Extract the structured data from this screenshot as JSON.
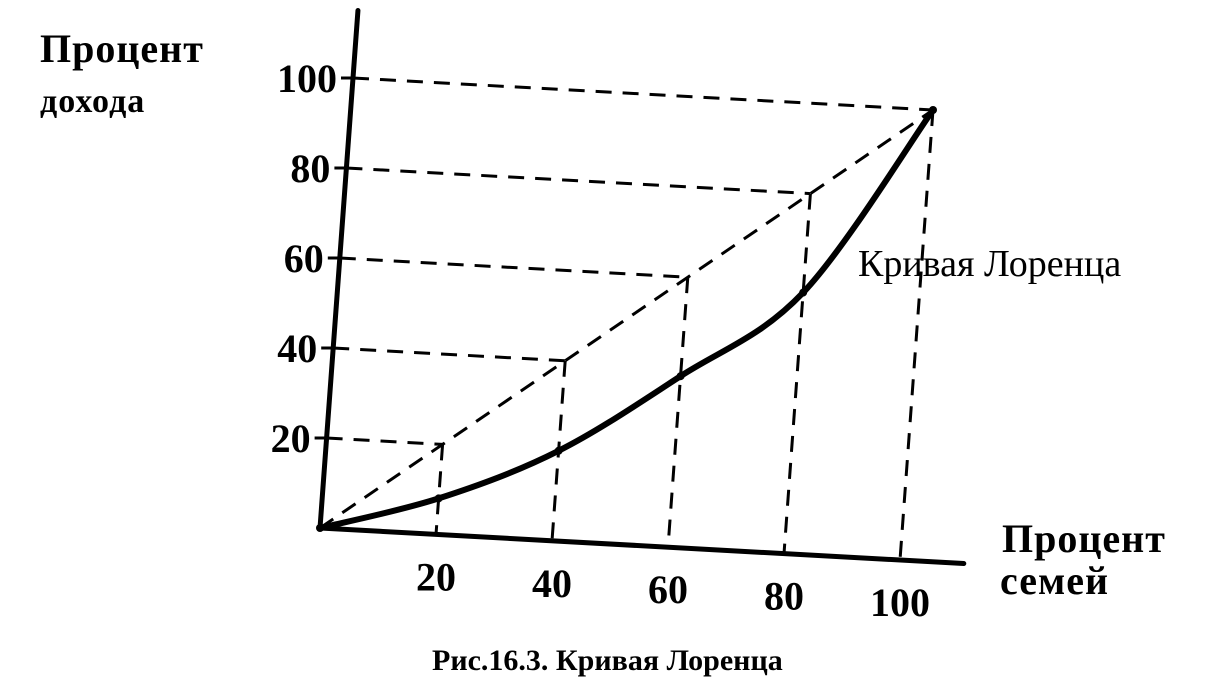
{
  "chart_data": {
    "type": "line",
    "title": "",
    "caption": "Рис.16.3. Кривая Лоренца",
    "ylabel_lines": [
      "Процент",
      "дохода"
    ],
    "xlabel_lines": [
      "Процент",
      "семей"
    ],
    "xlim": [
      0,
      100
    ],
    "ylim": [
      0,
      100
    ],
    "x_ticks": [
      "20",
      "40",
      "60",
      "80",
      "100"
    ],
    "y_ticks": [
      "20",
      "40",
      "60",
      "80",
      "100"
    ],
    "grid": false,
    "legend": "none",
    "series": [
      {
        "kind": "equality-line",
        "x": [
          0,
          20,
          40,
          60,
          80,
          100
        ],
        "y": [
          0,
          20,
          40,
          60,
          80,
          100
        ]
      },
      {
        "name": "Кривая Лоренца",
        "kind": "lorenz-curve",
        "x": [
          0,
          20,
          40,
          60,
          80,
          100
        ],
        "y": [
          0,
          8,
          20,
          38,
          58,
          100
        ]
      }
    ],
    "curve_label": "Кривая Лоренца"
  }
}
